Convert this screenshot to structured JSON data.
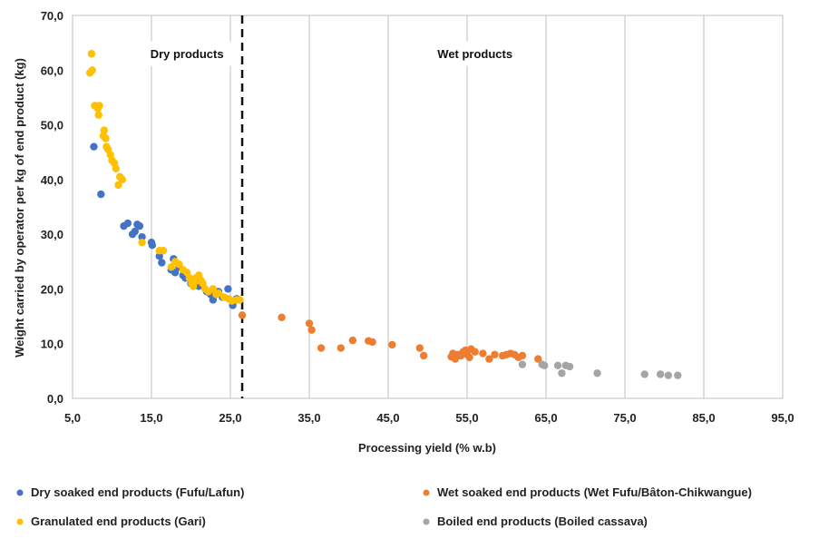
{
  "chart_data": {
    "type": "scatter",
    "xlabel": "Processing yield (% w.b)",
    "ylabel": "Weight carried by operator per kg of end product  (kg)",
    "xlim": [
      5,
      95
    ],
    "ylim": [
      0,
      70
    ],
    "x_ticks": [
      5,
      15,
      25,
      35,
      45,
      55,
      65,
      75,
      85,
      95
    ],
    "y_ticks": [
      0,
      10,
      20,
      30,
      40,
      50,
      60,
      70
    ],
    "x_tick_labels": [
      "5,0",
      "15,0",
      "25,0",
      "35,0",
      "45,0",
      "55,0",
      "65,0",
      "75,0",
      "85,0",
      "95,0"
    ],
    "y_tick_labels": [
      "0,0",
      "10,0",
      "20,0",
      "30,0",
      "40,0",
      "50,0",
      "60,0",
      "70,0"
    ],
    "grid": "vertical",
    "legend_position": "bottom",
    "divider_x": 26.5,
    "annotations": [
      {
        "text": "Dry products",
        "x": 19.5,
        "y": 63
      },
      {
        "text": "Wet products",
        "x": 56,
        "y": 63
      }
    ],
    "series": [
      {
        "name": "Dry soaked end products (Fufu/Lafun)",
        "color": "#4472C4",
        "points": [
          [
            7.7,
            46
          ],
          [
            8.6,
            37.3
          ],
          [
            11.5,
            31.5
          ],
          [
            12,
            32
          ],
          [
            12.6,
            30
          ],
          [
            12.9,
            30.5
          ],
          [
            13.2,
            31.8
          ],
          [
            13.5,
            31.5
          ],
          [
            13.8,
            29.5
          ],
          [
            15,
            28.5
          ],
          [
            15.1,
            28
          ],
          [
            16,
            26
          ],
          [
            16.3,
            24.8
          ],
          [
            17.5,
            23.5
          ],
          [
            17.8,
            25.5
          ],
          [
            18,
            23
          ],
          [
            18.5,
            24
          ],
          [
            19,
            22.5
          ],
          [
            19.3,
            22
          ],
          [
            20,
            21
          ],
          [
            21,
            20.5
          ],
          [
            22,
            19.5
          ],
          [
            22.5,
            19
          ],
          [
            22.8,
            18
          ],
          [
            23.5,
            19.5
          ],
          [
            24,
            18.5
          ],
          [
            24.7,
            20
          ],
          [
            25.3,
            17
          ],
          [
            25.8,
            18.2
          ]
        ]
      },
      {
        "name": "Granulated end products (Gari)",
        "color": "#FFC000",
        "points": [
          [
            7.2,
            59.5
          ],
          [
            7.4,
            63
          ],
          [
            7.5,
            60
          ],
          [
            7.8,
            53.5
          ],
          [
            8.2,
            53
          ],
          [
            8.3,
            51.8
          ],
          [
            8.4,
            53.5
          ],
          [
            8.9,
            48
          ],
          [
            9,
            49
          ],
          [
            9.2,
            47.5
          ],
          [
            9.3,
            46
          ],
          [
            9.5,
            45.5
          ],
          [
            9.8,
            44.5
          ],
          [
            10,
            43.5
          ],
          [
            10.3,
            43
          ],
          [
            10.5,
            42
          ],
          [
            10.8,
            39
          ],
          [
            11,
            40.5
          ],
          [
            11.3,
            40
          ],
          [
            13.8,
            28.5
          ],
          [
            16,
            27
          ],
          [
            16.5,
            27
          ],
          [
            17.5,
            24
          ],
          [
            18,
            25
          ],
          [
            18.5,
            24.5
          ],
          [
            19,
            23.5
          ],
          [
            19.5,
            23
          ],
          [
            19.8,
            22
          ],
          [
            20.1,
            21
          ],
          [
            20.3,
            20.5
          ],
          [
            20.6,
            22
          ],
          [
            20.8,
            21.5
          ],
          [
            21,
            22.5
          ],
          [
            21.3,
            21.5
          ],
          [
            21.5,
            21
          ],
          [
            21.8,
            20
          ],
          [
            22.2,
            19.5
          ],
          [
            22.8,
            20
          ],
          [
            23.2,
            19
          ],
          [
            23.5,
            19.2
          ],
          [
            24.2,
            18.5
          ],
          [
            24.8,
            18.2
          ],
          [
            25.2,
            17.8
          ],
          [
            25.8,
            18
          ],
          [
            26.2,
            18
          ]
        ]
      },
      {
        "name": "Wet soaked end products (Wet Fufu/Bâton-Chikwangue)",
        "color": "#ED7D31",
        "points": [
          [
            26.5,
            15.2
          ],
          [
            31.5,
            14.8
          ],
          [
            35,
            13.7
          ],
          [
            35.3,
            12.5
          ],
          [
            36.5,
            9.2
          ],
          [
            39,
            9.2
          ],
          [
            40.5,
            10.6
          ],
          [
            42.5,
            10.5
          ],
          [
            43,
            10.3
          ],
          [
            45.5,
            9.8
          ],
          [
            49,
            9.2
          ],
          [
            49.5,
            7.8
          ],
          [
            53,
            7.6
          ],
          [
            53.2,
            8.2
          ],
          [
            53.5,
            7.2
          ],
          [
            53.8,
            8
          ],
          [
            54.2,
            7.8
          ],
          [
            54.5,
            8.5
          ],
          [
            54.8,
            8.8
          ],
          [
            55,
            8
          ],
          [
            55.3,
            7.5
          ],
          [
            55.5,
            9
          ],
          [
            56,
            8.5
          ],
          [
            57,
            8.2
          ],
          [
            57.8,
            7.2
          ],
          [
            58.5,
            8
          ],
          [
            59.5,
            7.8
          ],
          [
            60,
            8
          ],
          [
            60.5,
            8.2
          ],
          [
            61,
            8
          ],
          [
            61.5,
            7.5
          ],
          [
            62,
            7.8
          ],
          [
            64,
            7.2
          ]
        ]
      },
      {
        "name": "Boiled end products (Boiled cassava)",
        "color": "#A5A5A5",
        "points": [
          [
            62,
            6.2
          ],
          [
            64.5,
            6.2
          ],
          [
            64.8,
            6
          ],
          [
            66.5,
            6
          ],
          [
            67,
            4.6
          ],
          [
            67.5,
            6
          ],
          [
            68,
            5.8
          ],
          [
            71.5,
            4.6
          ],
          [
            77.5,
            4.4
          ],
          [
            79.5,
            4.4
          ],
          [
            80.5,
            4.2
          ],
          [
            81.7,
            4.2
          ]
        ]
      }
    ]
  }
}
